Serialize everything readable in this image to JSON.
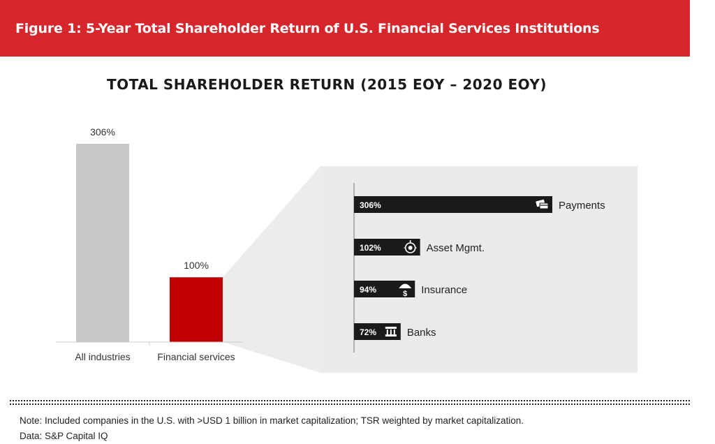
{
  "header": {
    "figure_title": "Figure 1: 5-Year Total Shareholder Return of U.S. Financial Services Institutions"
  },
  "chart_data": [
    {
      "type": "bar",
      "title": "TOTAL SHAREHOLDER RETURN (2015 EOY – 2020 EOY)",
      "categories": [
        "All industries",
        "Financial services"
      ],
      "values": [
        306,
        100
      ],
      "data_labels": [
        "306%",
        "100%"
      ],
      "colors": [
        "#c8c8c8",
        "#c00000"
      ],
      "ylim": [
        0,
        306
      ],
      "grid": false
    },
    {
      "type": "bar",
      "orientation": "horizontal",
      "categories": [
        "Payments",
        "Asset Mgmt.",
        "Insurance",
        "Banks"
      ],
      "values": [
        306,
        102,
        94,
        72
      ],
      "data_labels": [
        "306%",
        "102%",
        "94%",
        "72%"
      ],
      "icons": [
        "payment-cards-icon",
        "asset-clock-icon",
        "umbrella-dollar-icon",
        "bank-building-icon"
      ],
      "colors": [
        "#1a1a1a"
      ],
      "panel_color": "#ebebeb",
      "xlim": [
        0,
        306
      ],
      "grid": false
    }
  ],
  "footer": {
    "note": "Note: Included companies in the U.S. with >USD 1 billion in market capitalization; TSR weighted by market capitalization.",
    "source": "Data: S&P Capital IQ"
  }
}
